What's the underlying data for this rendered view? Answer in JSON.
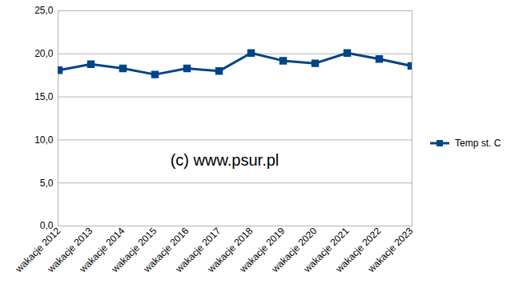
{
  "chart_data": {
    "type": "line",
    "categories": [
      "wakacje 2012",
      "wakacje 2013",
      "wakacje 2014",
      "wakacje 2015",
      "wakacje 2016",
      "wakacje 2017",
      "wakacje 2018",
      "wakacje 2019",
      "wakacje 2020",
      "wakacje 2021",
      "wakacje 2022",
      "wakacje 2023"
    ],
    "series": [
      {
        "name": "Temp st. C",
        "color": "#004586",
        "marker": "square",
        "values": [
          18.1,
          18.8,
          18.3,
          17.6,
          18.3,
          18.0,
          20.1,
          19.2,
          18.9,
          20.1,
          19.4,
          18.6
        ]
      }
    ],
    "ylim": [
      0,
      25
    ],
    "yticks": [
      {
        "value": 0,
        "label": "0,0"
      },
      {
        "value": 5,
        "label": "5,0"
      },
      {
        "value": 10,
        "label": "10,0"
      },
      {
        "value": 15,
        "label": "15,0"
      },
      {
        "value": 20,
        "label": "20,0"
      },
      {
        "value": 25,
        "label": "25,0"
      }
    ],
    "grid": true,
    "legend": "right",
    "annotations": [
      "(c) www.psur.pl"
    ]
  }
}
